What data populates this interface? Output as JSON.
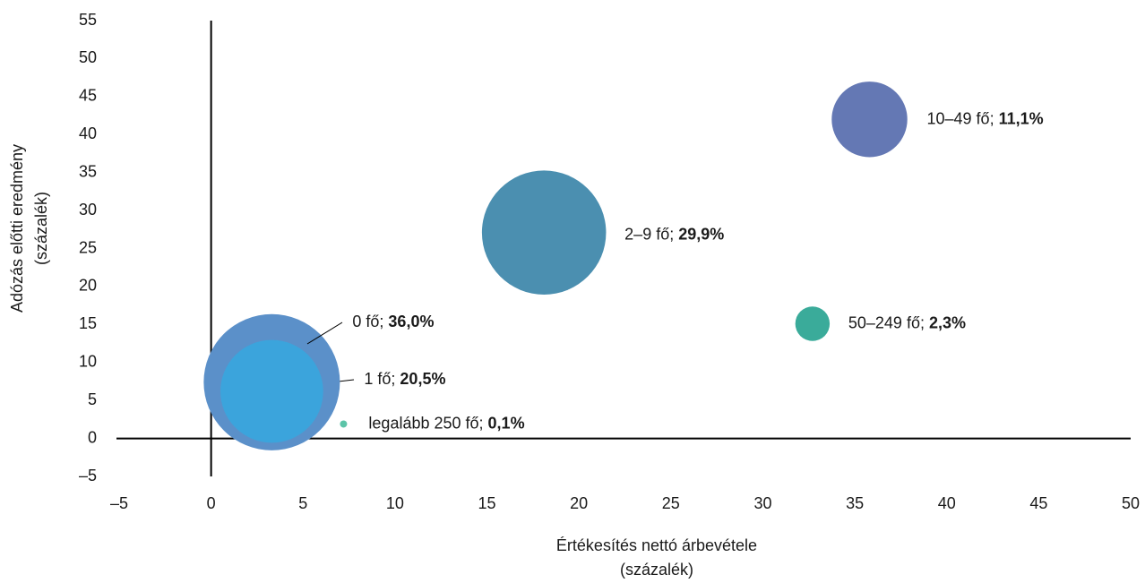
{
  "chart_data": {
    "type": "bubble",
    "x_label": [
      "Értékesítés nettó árbevétele",
      "(százalék)"
    ],
    "y_label": [
      "Adózás előtti eredmény",
      "(százalék)"
    ],
    "label_separator": "; ",
    "xlim": [
      -5,
      50
    ],
    "xticks": [
      {
        "value": -5,
        "label": "–5"
      },
      0,
      5,
      10,
      15,
      20,
      25,
      30,
      35,
      40,
      45,
      50
    ],
    "ylim": [
      -5,
      55
    ],
    "yticks": [
      {
        "value": -5,
        "label": "–5"
      },
      0,
      5,
      10,
      15,
      20,
      25,
      30,
      35,
      40,
      45,
      50,
      55
    ],
    "series": [
      {
        "name": "0 fő",
        "color": "#5b90c9",
        "x": [
          3.3
        ],
        "values": [
          7.4
        ],
        "sizes": [
          36.0
        ],
        "value_labels": [
          "36,0%"
        ]
      },
      {
        "name": "1 fő",
        "color": "#3ba4dc",
        "x": [
          3.3
        ],
        "values": [
          6.2
        ],
        "sizes": [
          20.5
        ],
        "value_labels": [
          "20,5%"
        ]
      },
      {
        "name": "2–9 fő",
        "color": "#4b8fb0",
        "x": [
          18.1
        ],
        "values": [
          27.1
        ],
        "sizes": [
          29.9
        ],
        "value_labels": [
          "29,9%"
        ]
      },
      {
        "name": "10–49 fő",
        "color": "#6478b4",
        "x": [
          35.8
        ],
        "values": [
          42.0
        ],
        "sizes": [
          11.1
        ],
        "value_labels": [
          "11,1%"
        ]
      },
      {
        "name": "50–249 fő",
        "color": "#3aab9a",
        "x": [
          32.7
        ],
        "values": [
          15.1
        ],
        "sizes": [
          2.3
        ],
        "value_labels": [
          "2,3%"
        ]
      },
      {
        "name": "legalább 250 fő",
        "color": "#5cc4a8",
        "x": [
          7.2
        ],
        "values": [
          1.9
        ],
        "sizes": [
          0.1
        ],
        "value_labels": [
          "0,1%"
        ]
      }
    ]
  }
}
